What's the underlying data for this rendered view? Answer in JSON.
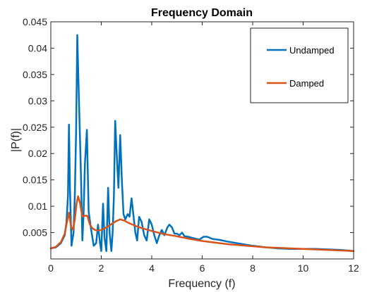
{
  "chart_data": {
    "type": "line",
    "title": "Frequency Domain",
    "xlabel": "Frequency (f)",
    "ylabel": "|P(f)|",
    "xlim": [
      0,
      12
    ],
    "ylim": [
      0,
      0.045
    ],
    "x_ticks": [
      0,
      2,
      4,
      6,
      8,
      10,
      12
    ],
    "x_tick_labels": [
      "0",
      "2",
      "4",
      "6",
      "8",
      "10",
      "12"
    ],
    "y_ticks": [
      0.005,
      0.01,
      0.015,
      0.02,
      0.025,
      0.03,
      0.035,
      0.04,
      0.045
    ],
    "y_tick_labels": [
      "0.005",
      "0.01",
      "0.015",
      "0.02",
      "0.025",
      "0.03",
      "0.035",
      "0.04",
      "0.045"
    ],
    "grid": false,
    "legend_position": "top-right",
    "series": [
      {
        "name": "Undamped",
        "color": "#0072BD",
        "points": [
          [
            0,
            0.002
          ],
          [
            0.2,
            0.0022
          ],
          [
            0.4,
            0.003
          ],
          [
            0.55,
            0.0045
          ],
          [
            0.62,
            0.007
          ],
          [
            0.68,
            0.012
          ],
          [
            0.72,
            0.0255
          ],
          [
            0.76,
            0.013
          ],
          [
            0.82,
            0.0025
          ],
          [
            0.9,
            0.005
          ],
          [
            0.95,
            0.012
          ],
          [
            1.0,
            0.024
          ],
          [
            1.05,
            0.0425
          ],
          [
            1.1,
            0.033
          ],
          [
            1.2,
            0.015
          ],
          [
            1.25,
            0.0035
          ],
          [
            1.3,
            0.009
          ],
          [
            1.35,
            0.018
          ],
          [
            1.43,
            0.0245
          ],
          [
            1.5,
            0.009
          ],
          [
            1.6,
            0.0055
          ],
          [
            1.7,
            0.0025
          ],
          [
            1.8,
            0.003
          ],
          [
            1.87,
            0.0065
          ],
          [
            1.95,
            0.003
          ],
          [
            2.0,
            0.0015
          ],
          [
            2.07,
            0.0105
          ],
          [
            2.13,
            0.004
          ],
          [
            2.2,
            0.0015
          ],
          [
            2.27,
            0.0135
          ],
          [
            2.33,
            0.005
          ],
          [
            2.4,
            0.0015
          ],
          [
            2.45,
            0.005
          ],
          [
            2.5,
            0.012
          ],
          [
            2.55,
            0.0262
          ],
          [
            2.62,
            0.019
          ],
          [
            2.68,
            0.0135
          ],
          [
            2.75,
            0.0235
          ],
          [
            2.82,
            0.0145
          ],
          [
            2.88,
            0.0085
          ],
          [
            2.95,
            0.0075
          ],
          [
            3.05,
            0.0085
          ],
          [
            3.12,
            0.008
          ],
          [
            3.2,
            0.0115
          ],
          [
            3.28,
            0.008
          ],
          [
            3.35,
            0.005
          ],
          [
            3.42,
            0.0035
          ],
          [
            3.5,
            0.008
          ],
          [
            3.6,
            0.007
          ],
          [
            3.7,
            0.0045
          ],
          [
            3.8,
            0.0035
          ],
          [
            3.9,
            0.0075
          ],
          [
            4.0,
            0.0065
          ],
          [
            4.1,
            0.0045
          ],
          [
            4.2,
            0.003
          ],
          [
            4.3,
            0.0045
          ],
          [
            4.4,
            0.0055
          ],
          [
            4.5,
            0.0045
          ],
          [
            4.62,
            0.006
          ],
          [
            4.7,
            0.0065
          ],
          [
            4.8,
            0.006
          ],
          [
            4.9,
            0.0048
          ],
          [
            5.0,
            0.0048
          ],
          [
            5.1,
            0.0045
          ],
          [
            5.2,
            0.005
          ],
          [
            5.3,
            0.0043
          ],
          [
            5.45,
            0.0042
          ],
          [
            5.6,
            0.004
          ],
          [
            5.75,
            0.0038
          ],
          [
            5.9,
            0.0037
          ],
          [
            6.05,
            0.0042
          ],
          [
            6.2,
            0.0042
          ],
          [
            6.4,
            0.0038
          ],
          [
            6.7,
            0.0036
          ],
          [
            7.0,
            0.0033
          ],
          [
            7.5,
            0.0029
          ],
          [
            8.0,
            0.0025
          ],
          [
            8.5,
            0.0022
          ],
          [
            9.0,
            0.002
          ],
          [
            9.5,
            0.0019
          ],
          [
            10.0,
            0.0019
          ],
          [
            10.5,
            0.0019
          ],
          [
            11.0,
            0.0018
          ],
          [
            11.5,
            0.0017
          ],
          [
            12.0,
            0.0015
          ]
        ]
      },
      {
        "name": "Damped",
        "color": "#D95319",
        "points": [
          [
            0,
            0.002
          ],
          [
            0.2,
            0.0023
          ],
          [
            0.4,
            0.0032
          ],
          [
            0.55,
            0.0048
          ],
          [
            0.65,
            0.0072
          ],
          [
            0.72,
            0.0088
          ],
          [
            0.8,
            0.0062
          ],
          [
            0.88,
            0.0055
          ],
          [
            0.95,
            0.0075
          ],
          [
            1.02,
            0.0105
          ],
          [
            1.08,
            0.0119
          ],
          [
            1.15,
            0.0108
          ],
          [
            1.25,
            0.008
          ],
          [
            1.35,
            0.0082
          ],
          [
            1.45,
            0.0082
          ],
          [
            1.55,
            0.0065
          ],
          [
            1.65,
            0.0058
          ],
          [
            1.75,
            0.0055
          ],
          [
            1.85,
            0.0054
          ],
          [
            2.0,
            0.0055
          ],
          [
            2.2,
            0.006
          ],
          [
            2.4,
            0.0066
          ],
          [
            2.6,
            0.0072
          ],
          [
            2.75,
            0.0075
          ],
          [
            2.9,
            0.0073
          ],
          [
            3.1,
            0.0068
          ],
          [
            3.5,
            0.006
          ],
          [
            4.0,
            0.0053
          ],
          [
            4.5,
            0.0047
          ],
          [
            5.0,
            0.0043
          ],
          [
            5.5,
            0.0038
          ],
          [
            6.0,
            0.0034
          ],
          [
            6.5,
            0.0031
          ],
          [
            7.0,
            0.0028
          ],
          [
            7.5,
            0.0026
          ],
          [
            8.0,
            0.0024
          ],
          [
            8.5,
            0.0022
          ],
          [
            9.0,
            0.0021
          ],
          [
            9.5,
            0.002
          ],
          [
            10.0,
            0.0019
          ],
          [
            10.5,
            0.0018
          ],
          [
            11.0,
            0.0017
          ],
          [
            11.5,
            0.0016
          ],
          [
            12.0,
            0.0015
          ]
        ]
      }
    ]
  }
}
